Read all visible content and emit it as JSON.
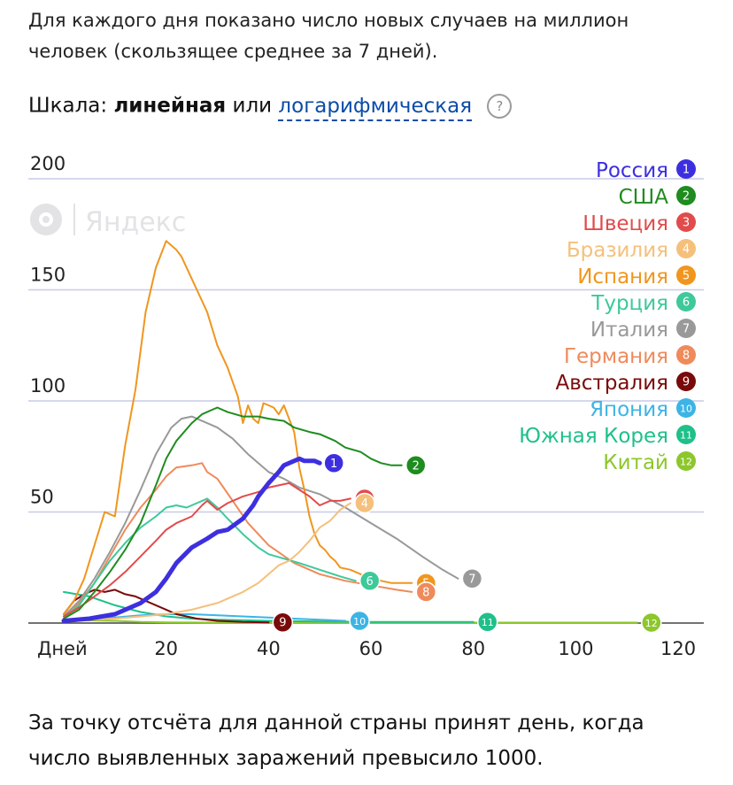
{
  "intro_text": "Для каждого дня показано число новых случаев на миллион человек (скользящее среднее за 7 дней).",
  "scale": {
    "label": "Шкала:",
    "option_linear": "линейная",
    "or_word": "или",
    "option_log": "логарифмическая",
    "help_icon_glyph": "?"
  },
  "watermark": "Яндекс",
  "footer_text": "За точку отсчёта для данной страны принят день, когда число выявленных заражений превысило 1000.",
  "chart_data": {
    "type": "line",
    "xlabel": "Дней",
    "ylabel": "",
    "x_ticks": [
      20,
      40,
      60,
      80,
      100,
      120
    ],
    "y_ticks": [
      50,
      100,
      150,
      200
    ],
    "xlim": [
      0,
      125
    ],
    "ylim": [
      0,
      200
    ],
    "grid": true,
    "legend_position": "top-right",
    "series": [
      {
        "name": "Россия",
        "marker": "1",
        "color": "#3d2fe0",
        "emphasis": true,
        "x": [
          0,
          5,
          10,
          15,
          18,
          20,
          22,
          25,
          28,
          30,
          32,
          35,
          37,
          38,
          40,
          42,
          43,
          45,
          46,
          47,
          48,
          49,
          50
        ],
        "y": [
          1,
          2,
          4,
          9,
          14,
          20,
          27,
          34,
          38,
          41,
          42,
          47,
          53,
          57,
          63,
          68,
          71,
          73,
          74,
          73,
          73,
          73,
          72
        ]
      },
      {
        "name": "США",
        "marker": "2",
        "color": "#1e8c1e",
        "x": [
          0,
          3,
          6,
          9,
          12,
          15,
          18,
          20,
          22,
          25,
          27,
          29,
          30,
          32,
          35,
          38,
          40,
          43,
          45,
          48,
          50,
          53,
          55,
          58,
          60,
          62,
          64,
          66
        ],
        "y": [
          2,
          6,
          14,
          23,
          33,
          45,
          62,
          74,
          82,
          90,
          94,
          96,
          97,
          95,
          93,
          93,
          92,
          91,
          88,
          86,
          85,
          82,
          79,
          77,
          74,
          72,
          71,
          71
        ]
      },
      {
        "name": "Швеция",
        "marker": "3",
        "color": "#e24b4b",
        "x": [
          0,
          3,
          6,
          9,
          12,
          15,
          18,
          20,
          22,
          25,
          27,
          28,
          30,
          32,
          35,
          38,
          40,
          42,
          44,
          46,
          48,
          50,
          52,
          54,
          56
        ],
        "y": [
          3,
          7,
          12,
          17,
          23,
          30,
          37,
          42,
          45,
          48,
          53,
          55,
          51,
          54,
          57,
          59,
          61,
          62,
          63,
          60,
          57,
          53,
          55,
          55,
          56
        ]
      },
      {
        "name": "Бразилия",
        "marker": "4",
        "color": "#f5c07b",
        "x": [
          0,
          10,
          20,
          25,
          30,
          35,
          38,
          40,
          42,
          44,
          46,
          48,
          50,
          52,
          54,
          56
        ],
        "y": [
          1,
          2,
          4,
          6,
          9,
          14,
          18,
          22,
          26,
          28,
          32,
          37,
          43,
          46,
          51,
          54
        ]
      },
      {
        "name": "Испания",
        "marker": "5",
        "color": "#f0961e",
        "x": [
          0,
          2,
          4,
          6,
          8,
          10,
          12,
          14,
          16,
          18,
          20,
          21,
          22,
          23,
          24,
          26,
          28,
          30,
          32,
          34,
          35,
          36,
          37,
          38,
          39,
          40,
          41,
          42,
          43,
          44,
          45,
          46,
          47,
          48,
          49,
          50,
          51,
          52,
          53,
          54,
          56,
          58,
          60,
          62,
          64,
          66,
          68
        ],
        "y": [
          4,
          10,
          20,
          35,
          50,
          48,
          80,
          105,
          140,
          160,
          172,
          170,
          168,
          165,
          160,
          150,
          140,
          125,
          115,
          102,
          90,
          98,
          92,
          90,
          99,
          98,
          97,
          94,
          98,
          92,
          86,
          70,
          60,
          48,
          40,
          35,
          33,
          30,
          28,
          25,
          24,
          22,
          20,
          19,
          18,
          18,
          18
        ]
      },
      {
        "name": "Турция",
        "marker": "6",
        "color": "#3dc99a",
        "x": [
          0,
          3,
          6,
          9,
          12,
          15,
          18,
          20,
          22,
          24,
          26,
          28,
          30,
          32,
          35,
          38,
          40,
          43,
          46,
          50,
          54,
          57
        ],
        "y": [
          2,
          8,
          18,
          28,
          36,
          43,
          48,
          52,
          53,
          52,
          54,
          56,
          52,
          47,
          40,
          34,
          31,
          29,
          27,
          24,
          21,
          19
        ]
      },
      {
        "name": "Италия",
        "marker": "7",
        "color": "#999999",
        "x": [
          0,
          3,
          6,
          9,
          12,
          15,
          18,
          21,
          23,
          25,
          27,
          30,
          33,
          36,
          40,
          43,
          46,
          50,
          55,
          60,
          65,
          70,
          74,
          77
        ],
        "y": [
          3,
          10,
          20,
          32,
          45,
          60,
          76,
          88,
          92,
          93,
          91,
          88,
          83,
          76,
          68,
          65,
          61,
          58,
          52,
          45,
          38,
          30,
          24,
          20
        ]
      },
      {
        "name": "Германия",
        "marker": "8",
        "color": "#ef8a5b",
        "x": [
          0,
          3,
          6,
          9,
          12,
          15,
          18,
          20,
          22,
          25,
          27,
          28,
          30,
          33,
          36,
          40,
          45,
          50,
          55,
          60,
          65,
          68
        ],
        "y": [
          3,
          9,
          18,
          30,
          42,
          52,
          60,
          66,
          70,
          71,
          72,
          68,
          65,
          55,
          45,
          35,
          27,
          22,
          19,
          17,
          15,
          14
        ]
      },
      {
        "name": "Австралия",
        "marker": "9",
        "color": "#7a0a0a",
        "x": [
          0,
          2,
          4,
          6,
          8,
          10,
          12,
          14,
          16,
          18,
          20,
          22,
          24,
          26,
          28,
          30,
          35,
          40
        ],
        "y": [
          4,
          10,
          13,
          15,
          14,
          15,
          13,
          12,
          10,
          8,
          6,
          4,
          3,
          2,
          1.5,
          1,
          0.5,
          0.3
        ]
      },
      {
        "name": "Япония",
        "marker": "10",
        "color": "#3cb4e6",
        "x": [
          0,
          5,
          10,
          15,
          20,
          25,
          30,
          35,
          40,
          45,
          50,
          55
        ],
        "y": [
          1,
          1.5,
          2.5,
          3.5,
          4,
          4,
          3.5,
          3,
          2.5,
          2,
          1.5,
          1
        ]
      },
      {
        "name": "Южная Корея",
        "marker": "11",
        "color": "#1fc08a",
        "x": [
          0,
          5,
          10,
          15,
          20,
          25,
          30,
          40,
          50,
          60,
          70,
          80
        ],
        "y": [
          14,
          12,
          8,
          5,
          3,
          2,
          1.5,
          1,
          0.7,
          0.5,
          0.5,
          0.5
        ]
      },
      {
        "name": "Китай",
        "marker": "12",
        "color": "#8cc72b",
        "x": [
          0,
          5,
          10,
          15,
          20,
          30,
          40,
          50,
          60,
          80,
          100,
          112
        ],
        "y": [
          1.5,
          1.2,
          1,
          0.5,
          0.3,
          0.2,
          0.2,
          0.2,
          0.2,
          0.2,
          0.2,
          0.2
        ]
      }
    ]
  }
}
